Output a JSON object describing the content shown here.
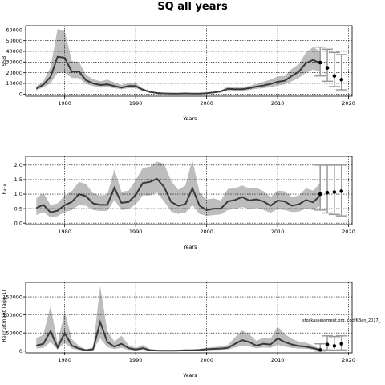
{
  "title": "SQ all years",
  "chart_data": [
    {
      "type": "line",
      "xlabel": "Years",
      "ylabel": "SSB",
      "xlim": [
        1974.5,
        2020.5
      ],
      "ylim": [
        -2000,
        64000
      ],
      "x_ticks": [
        1980,
        1990,
        2000,
        2010,
        2020
      ],
      "y_ticks": [
        0,
        10000,
        20000,
        30000,
        40000,
        50000,
        60000
      ],
      "y_tick_labels": [
        "0",
        "10000",
        "20000",
        "30000",
        "40000",
        "50000",
        "60000"
      ],
      "grid": true,
      "years": [
        1976,
        1977,
        1978,
        1979,
        1980,
        1981,
        1982,
        1983,
        1984,
        1985,
        1986,
        1987,
        1988,
        1989,
        1990,
        1991,
        1992,
        1993,
        1994,
        1995,
        1996,
        1997,
        1998,
        1999,
        2000,
        2001,
        2002,
        2003,
        2004,
        2005,
        2006,
        2007,
        2008,
        2009,
        2010,
        2011,
        2012,
        2013,
        2014,
        2015,
        2016
      ],
      "median": [
        5000,
        9000,
        16000,
        35000,
        34000,
        21000,
        21000,
        13000,
        10000,
        8500,
        9000,
        7500,
        6000,
        7500,
        7500,
        4000,
        2000,
        1000,
        600,
        500,
        500,
        600,
        500,
        500,
        800,
        1500,
        2500,
        5000,
        4500,
        4500,
        5500,
        7000,
        8000,
        9500,
        11500,
        12500,
        17000,
        21000,
        29000,
        32000,
        29000
      ],
      "upper": [
        7000,
        12000,
        25000,
        61000,
        59000,
        31000,
        30000,
        18000,
        14000,
        12000,
        13500,
        11000,
        8500,
        10000,
        10000,
        5500,
        3000,
        1500,
        900,
        800,
        800,
        900,
        800,
        800,
        1200,
        2000,
        3500,
        7000,
        6500,
        6500,
        7500,
        9500,
        11500,
        13500,
        16500,
        17000,
        23500,
        28000,
        39000,
        44000,
        40000
      ],
      "lower": [
        3500,
        6500,
        10000,
        20000,
        20000,
        15000,
        15000,
        9500,
        7500,
        6000,
        6500,
        5500,
        4500,
        5500,
        5500,
        3000,
        1500,
        700,
        400,
        300,
        300,
        400,
        300,
        300,
        500,
        1000,
        1500,
        3500,
        3000,
        3000,
        3800,
        5000,
        5500,
        6500,
        8000,
        9000,
        12000,
        15000,
        20000,
        23000,
        21000
      ],
      "projection_points": [
        {
          "x": 2016,
          "y": 29500
        },
        {
          "x": 2017,
          "y": 24500
        },
        {
          "x": 2018,
          "y": 17000
        },
        {
          "x": 2019,
          "y": 13500
        }
      ],
      "projection_intervals": [
        {
          "x": 2016,
          "low": 17000,
          "high": 44000
        },
        {
          "x": 2017,
          "low": 12000,
          "high": 42000
        },
        {
          "x": 2018,
          "low": 7000,
          "high": 39000
        },
        {
          "x": 2019,
          "low": 4000,
          "high": 37000
        }
      ]
    },
    {
      "type": "line",
      "xlabel": "Years",
      "ylabel": "F₄₋₈",
      "xlim": [
        1974.5,
        2020.5
      ],
      "ylim": [
        -0.05,
        2.3
      ],
      "x_ticks": [
        1980,
        1990,
        2000,
        2010,
        2020
      ],
      "y_ticks": [
        0,
        0.5,
        1,
        1.5,
        2
      ],
      "y_tick_labels": [
        "0.0",
        "0.5",
        "1.0",
        "1.5",
        "2.0"
      ],
      "grid": true,
      "years": [
        1976,
        1977,
        1978,
        1979,
        1980,
        1981,
        1982,
        1983,
        1984,
        1985,
        1986,
        1987,
        1988,
        1989,
        1990,
        1991,
        1992,
        1993,
        1994,
        1995,
        1996,
        1997,
        1998,
        1999,
        2000,
        2001,
        2002,
        2003,
        2004,
        2005,
        2006,
        2007,
        2008,
        2009,
        2010,
        2011,
        2012,
        2013,
        2014,
        2015,
        2016
      ],
      "median": [
        0.52,
        0.63,
        0.37,
        0.43,
        0.62,
        0.73,
        1.0,
        0.93,
        0.68,
        0.63,
        0.63,
        1.22,
        0.7,
        0.73,
        0.97,
        1.38,
        1.42,
        1.53,
        1.25,
        0.73,
        0.6,
        0.65,
        1.2,
        0.6,
        0.45,
        0.5,
        0.5,
        0.75,
        0.8,
        0.9,
        0.78,
        0.82,
        0.75,
        0.6,
        0.78,
        0.75,
        0.6,
        0.65,
        0.8,
        0.72,
        0.95
      ],
      "upper": [
        0.85,
        1.05,
        0.62,
        0.68,
        0.95,
        1.1,
        1.42,
        1.35,
        1.02,
        0.95,
        0.98,
        1.85,
        1.08,
        1.12,
        1.48,
        1.9,
        1.95,
        2.12,
        2.05,
        1.45,
        1.15,
        1.3,
        2.18,
        1.05,
        0.82,
        0.85,
        0.78,
        1.18,
        1.2,
        1.3,
        1.2,
        1.22,
        1.1,
        0.9,
        1.12,
        1.1,
        0.9,
        0.95,
        1.2,
        1.12,
        1.38
      ],
      "lower": [
        0.28,
        0.38,
        0.2,
        0.24,
        0.38,
        0.45,
        0.62,
        0.6,
        0.45,
        0.42,
        0.42,
        0.8,
        0.45,
        0.48,
        0.65,
        0.95,
        0.95,
        1.05,
        0.75,
        0.4,
        0.32,
        0.36,
        0.62,
        0.32,
        0.25,
        0.28,
        0.3,
        0.45,
        0.5,
        0.55,
        0.5,
        0.52,
        0.46,
        0.36,
        0.48,
        0.45,
        0.38,
        0.4,
        0.5,
        0.45,
        0.6
      ],
      "projection_points": [
        {
          "x": 2016,
          "y": 1.0
        },
        {
          "x": 2017,
          "y": 1.05
        },
        {
          "x": 2018,
          "y": 1.07
        },
        {
          "x": 2019,
          "y": 1.1
        }
      ],
      "projection_intervals": [
        {
          "x": 2016,
          "low": 0.45,
          "high": 2.0
        },
        {
          "x": 2017,
          "low": 0.35,
          "high": 2.0
        },
        {
          "x": 2018,
          "low": 0.3,
          "high": 2.0
        },
        {
          "x": 2019,
          "low": 0.25,
          "high": 2.0
        }
      ]
    },
    {
      "type": "line",
      "xlabel": "Years",
      "ylabel": "Recruitment (age 1)",
      "xlim": [
        1974.5,
        2020.5
      ],
      "ylim": [
        -5000,
        190000
      ],
      "x_ticks": [
        1980,
        1990,
        2000,
        2010,
        2020
      ],
      "y_ticks": [
        0,
        50000,
        100000,
        150000
      ],
      "y_tick_labels": [
        "0",
        "50000",
        "100000",
        "150000"
      ],
      "grid": true,
      "years": [
        1976,
        1977,
        1978,
        1979,
        1980,
        1981,
        1982,
        1983,
        1984,
        1985,
        1986,
        1987,
        1988,
        1989,
        1990,
        1991,
        1992,
        1993,
        1994,
        1995,
        1996,
        1997,
        1998,
        1999,
        2000,
        2001,
        2002,
        2003,
        2004,
        2005,
        2006,
        2007,
        2008,
        2009,
        2010,
        2011,
        2012,
        2013,
        2014,
        2015,
        2016
      ],
      "median": [
        15000,
        20000,
        55000,
        10000,
        50000,
        15000,
        7000,
        2000,
        5000,
        80000,
        25000,
        12000,
        20000,
        8000,
        4000,
        8000,
        2500,
        1500,
        1000,
        1000,
        1500,
        2000,
        2000,
        3000,
        5000,
        6000,
        7000,
        9000,
        20000,
        30000,
        25000,
        15000,
        20000,
        18000,
        35000,
        25000,
        18000,
        14000,
        12000,
        8000,
        3000
      ],
      "upper": [
        35000,
        45000,
        125000,
        22000,
        110000,
        33000,
        14000,
        5000,
        10000,
        180000,
        55000,
        26000,
        42000,
        17000,
        9000,
        17000,
        5500,
        3500,
        2500,
        2500,
        3000,
        4000,
        4000,
        6000,
        9000,
        11000,
        13000,
        17000,
        38000,
        57000,
        47000,
        28000,
        37000,
        34000,
        68000,
        47000,
        34000,
        26000,
        23000,
        16000,
        6000
      ],
      "lower": [
        7000,
        9000,
        25000,
        4500,
        22000,
        7000,
        3000,
        800,
        2000,
        35000,
        11000,
        5500,
        9000,
        3500,
        1700,
        3500,
        1100,
        600,
        400,
        400,
        600,
        900,
        900,
        1300,
        2500,
        3000,
        3500,
        4500,
        10000,
        15000,
        13000,
        7500,
        10000,
        9000,
        17000,
        12500,
        9000,
        7000,
        6000,
        4000,
        1300
      ],
      "projection_points": [
        {
          "x": 2016,
          "y": 3000
        },
        {
          "x": 2017,
          "y": 18000
        },
        {
          "x": 2018,
          "y": 14000
        },
        {
          "x": 2019,
          "y": 20000
        }
      ],
      "projection_intervals": [
        {
          "x": 2016,
          "low": 200,
          "high": 20000
        },
        {
          "x": 2017,
          "low": 3000,
          "high": 42000
        },
        {
          "x": 2018,
          "low": 2000,
          "high": 40000
        },
        {
          "x": 2019,
          "low": 3000,
          "high": 42000
        }
      ],
      "annotation": "stockassessment.org, codfKBen_2017_"
    }
  ]
}
